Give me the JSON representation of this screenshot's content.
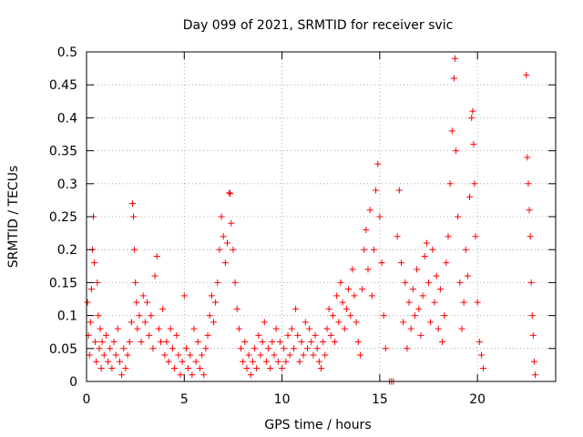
{
  "chart_data": {
    "type": "scatter",
    "title": "Day 099 of 2021, SRMTID for receiver svic",
    "xlabel": "GPS time / hours",
    "ylabel": "SRMTID / TECUs",
    "xlim": [
      0,
      24
    ],
    "ylim": [
      0,
      0.5
    ],
    "xticks": [
      "0",
      "5",
      "10",
      "15",
      "20"
    ],
    "yticks": [
      "0",
      "0.05",
      "0.1",
      "0.15",
      "0.2",
      "0.25",
      "0.3",
      "0.35",
      "0.4",
      "0.45",
      "0.5"
    ],
    "grid": true,
    "marker": "+",
    "marker_color": "#ff0000",
    "series": [
      {
        "points": [
          [
            0.05,
            0.12
          ],
          [
            0.1,
            0.07
          ],
          [
            0.15,
            0.04
          ],
          [
            0.2,
            0.09
          ],
          [
            0.25,
            0.14
          ],
          [
            0.3,
            0.2
          ],
          [
            0.35,
            0.25
          ],
          [
            0.4,
            0.18
          ],
          [
            0.45,
            0.06
          ],
          [
            0.5,
            0.03
          ],
          [
            0.55,
            0.15
          ],
          [
            0.6,
            0.1
          ],
          [
            0.65,
            0.05
          ],
          [
            0.7,
            0.08
          ],
          [
            0.75,
            0.02
          ],
          [
            0.8,
            0.06
          ],
          [
            0.9,
            0.04
          ],
          [
            1.0,
            0.07
          ],
          [
            1.1,
            0.03
          ],
          [
            1.2,
            0.05
          ],
          [
            1.3,
            0.02
          ],
          [
            1.4,
            0.06
          ],
          [
            1.5,
            0.04
          ],
          [
            1.6,
            0.08
          ],
          [
            1.7,
            0.03
          ],
          [
            1.8,
            0.01
          ],
          [
            1.9,
            0.05
          ],
          [
            2.0,
            0.02
          ],
          [
            2.1,
            0.04
          ],
          [
            2.2,
            0.06
          ],
          [
            2.3,
            0.09
          ],
          [
            2.35,
            0.27
          ],
          [
            2.4,
            0.25
          ],
          [
            2.45,
            0.2
          ],
          [
            2.5,
            0.15
          ],
          [
            2.55,
            0.12
          ],
          [
            2.6,
            0.08
          ],
          [
            2.7,
            0.1
          ],
          [
            2.8,
            0.06
          ],
          [
            2.9,
            0.13
          ],
          [
            3.0,
            0.09
          ],
          [
            3.1,
            0.12
          ],
          [
            3.2,
            0.07
          ],
          [
            3.3,
            0.1
          ],
          [
            3.4,
            0.05
          ],
          [
            3.5,
            0.16
          ],
          [
            3.6,
            0.19
          ],
          [
            3.7,
            0.08
          ],
          [
            3.8,
            0.06
          ],
          [
            3.9,
            0.11
          ],
          [
            4.0,
            0.04
          ],
          [
            4.1,
            0.06
          ],
          [
            4.2,
            0.03
          ],
          [
            4.3,
            0.08
          ],
          [
            4.4,
            0.05
          ],
          [
            4.5,
            0.02
          ],
          [
            4.6,
            0.07
          ],
          [
            4.7,
            0.04
          ],
          [
            4.8,
            0.01
          ],
          [
            4.9,
            0.03
          ],
          [
            5.0,
            0.13
          ],
          [
            5.1,
            0.05
          ],
          [
            5.2,
            0.02
          ],
          [
            5.3,
            0.04
          ],
          [
            5.4,
            0.01
          ],
          [
            5.5,
            0.08
          ],
          [
            5.6,
            0.03
          ],
          [
            5.7,
            0.06
          ],
          [
            5.8,
            0.02
          ],
          [
            5.9,
            0.04
          ],
          [
            6.0,
            0.01
          ],
          [
            6.1,
            0.05
          ],
          [
            6.2,
            0.07
          ],
          [
            6.3,
            0.1
          ],
          [
            6.4,
            0.13
          ],
          [
            6.5,
            0.09
          ],
          [
            6.6,
            0.12
          ],
          [
            6.7,
            0.15
          ],
          [
            6.8,
            0.2
          ],
          [
            6.9,
            0.25
          ],
          [
            7.0,
            0.22
          ],
          [
            7.1,
            0.18
          ],
          [
            7.2,
            0.21
          ],
          [
            7.3,
            0.286
          ],
          [
            7.35,
            0.285
          ],
          [
            7.4,
            0.24
          ],
          [
            7.5,
            0.2
          ],
          [
            7.6,
            0.15
          ],
          [
            7.7,
            0.11
          ],
          [
            7.8,
            0.08
          ],
          [
            7.9,
            0.05
          ],
          [
            8.0,
            0.03
          ],
          [
            8.1,
            0.06
          ],
          [
            8.2,
            0.02
          ],
          [
            8.3,
            0.04
          ],
          [
            8.4,
            0.01
          ],
          [
            8.5,
            0.03
          ],
          [
            8.6,
            0.05
          ],
          [
            8.7,
            0.02
          ],
          [
            8.8,
            0.07
          ],
          [
            8.9,
            0.04
          ],
          [
            9.0,
            0.06
          ],
          [
            9.1,
            0.09
          ],
          [
            9.2,
            0.03
          ],
          [
            9.3,
            0.05
          ],
          [
            9.4,
            0.02
          ],
          [
            9.5,
            0.06
          ],
          [
            9.6,
            0.04
          ],
          [
            9.7,
            0.08
          ],
          [
            9.8,
            0.03
          ],
          [
            9.9,
            0.06
          ],
          [
            10.0,
            0.02
          ],
          [
            10.1,
            0.05
          ],
          [
            10.2,
            0.03
          ],
          [
            10.3,
            0.07
          ],
          [
            10.4,
            0.04
          ],
          [
            10.5,
            0.08
          ],
          [
            10.6,
            0.05
          ],
          [
            10.7,
            0.11
          ],
          [
            10.8,
            0.07
          ],
          [
            10.9,
            0.03
          ],
          [
            11.0,
            0.06
          ],
          [
            11.1,
            0.04
          ],
          [
            11.2,
            0.09
          ],
          [
            11.3,
            0.05
          ],
          [
            11.4,
            0.08
          ],
          [
            11.5,
            0.06
          ],
          [
            11.6,
            0.04
          ],
          [
            11.7,
            0.07
          ],
          [
            11.8,
            0.05
          ],
          [
            11.9,
            0.03
          ],
          [
            12.0,
            0.02
          ],
          [
            12.1,
            0.06
          ],
          [
            12.2,
            0.04
          ],
          [
            12.3,
            0.08
          ],
          [
            12.4,
            0.11
          ],
          [
            12.5,
            0.07
          ],
          [
            12.6,
            0.1
          ],
          [
            12.7,
            0.06
          ],
          [
            12.8,
            0.13
          ],
          [
            12.9,
            0.09
          ],
          [
            13.0,
            0.15
          ],
          [
            13.1,
            0.12
          ],
          [
            13.2,
            0.08
          ],
          [
            13.3,
            0.11
          ],
          [
            13.4,
            0.14
          ],
          [
            13.5,
            0.1
          ],
          [
            13.6,
            0.17
          ],
          [
            13.7,
            0.13
          ],
          [
            13.8,
            0.09
          ],
          [
            13.9,
            0.06
          ],
          [
            14.0,
            0.04
          ],
          [
            14.1,
            0.14
          ],
          [
            14.2,
            0.2
          ],
          [
            14.3,
            0.23
          ],
          [
            14.4,
            0.17
          ],
          [
            14.5,
            0.26
          ],
          [
            14.6,
            0.13
          ],
          [
            14.7,
            0.2
          ],
          [
            14.8,
            0.29
          ],
          [
            14.9,
            0.33
          ],
          [
            15.0,
            0.25
          ],
          [
            15.1,
            0.18
          ],
          [
            15.2,
            0.1
          ],
          [
            15.3,
            0.05
          ],
          [
            15.5,
            0.0
          ],
          [
            15.6,
            0.0
          ],
          [
            15.7,
            0.0
          ],
          [
            15.9,
            0.22
          ],
          [
            16.0,
            0.29
          ],
          [
            16.1,
            0.18
          ],
          [
            16.2,
            0.09
          ],
          [
            16.3,
            0.15
          ],
          [
            16.4,
            0.05
          ],
          [
            16.5,
            0.12
          ],
          [
            16.6,
            0.08
          ],
          [
            16.7,
            0.14
          ],
          [
            16.8,
            0.1
          ],
          [
            16.9,
            0.17
          ],
          [
            17.0,
            0.11
          ],
          [
            17.1,
            0.07
          ],
          [
            17.2,
            0.13
          ],
          [
            17.3,
            0.19
          ],
          [
            17.4,
            0.21
          ],
          [
            17.5,
            0.15
          ],
          [
            17.6,
            0.09
          ],
          [
            17.7,
            0.2
          ],
          [
            17.8,
            0.12
          ],
          [
            17.9,
            0.16
          ],
          [
            18.0,
            0.08
          ],
          [
            18.1,
            0.14
          ],
          [
            18.2,
            0.06
          ],
          [
            18.3,
            0.1
          ],
          [
            18.4,
            0.18
          ],
          [
            18.5,
            0.22
          ],
          [
            18.6,
            0.3
          ],
          [
            18.7,
            0.38
          ],
          [
            18.8,
            0.46
          ],
          [
            18.85,
            0.49
          ],
          [
            18.9,
            0.35
          ],
          [
            19.0,
            0.25
          ],
          [
            19.1,
            0.15
          ],
          [
            19.2,
            0.08
          ],
          [
            19.3,
            0.12
          ],
          [
            19.4,
            0.2
          ],
          [
            19.5,
            0.16
          ],
          [
            19.6,
            0.28
          ],
          [
            19.7,
            0.4
          ],
          [
            19.75,
            0.41
          ],
          [
            19.8,
            0.36
          ],
          [
            19.85,
            0.3
          ],
          [
            19.9,
            0.22
          ],
          [
            20.0,
            0.12
          ],
          [
            20.1,
            0.06
          ],
          [
            20.2,
            0.04
          ],
          [
            20.3,
            0.02
          ],
          [
            22.5,
            0.465
          ],
          [
            22.55,
            0.34
          ],
          [
            22.6,
            0.3
          ],
          [
            22.65,
            0.26
          ],
          [
            22.7,
            0.22
          ],
          [
            22.75,
            0.15
          ],
          [
            22.8,
            0.1
          ],
          [
            22.85,
            0.07
          ],
          [
            22.9,
            0.03
          ],
          [
            22.95,
            0.01
          ]
        ]
      }
    ]
  }
}
